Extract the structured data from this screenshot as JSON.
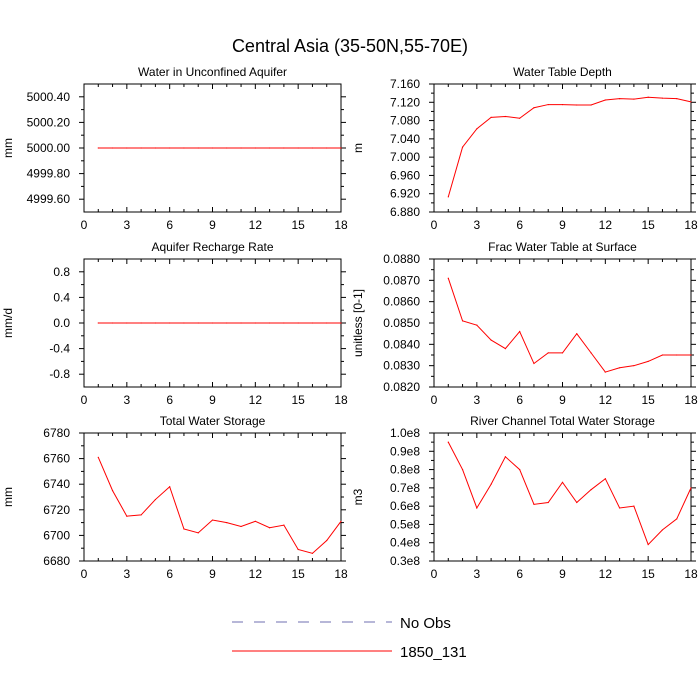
{
  "figure": {
    "title": "Central Asia (35-50N,55-70E)"
  },
  "legend": [
    {
      "label": "No Obs",
      "color": "#6f6fb0",
      "dash": true
    },
    {
      "label": "1850_131",
      "color": "#ff0000",
      "dash": false
    }
  ],
  "chart_data": [
    {
      "type": "line",
      "title": "Water in Unconfined Aquifer",
      "xlabel": "",
      "ylabel": "mm",
      "xlim": [
        0,
        18
      ],
      "ylim": [
        4999.5,
        5000.5
      ],
      "xticks": [
        0,
        3,
        6,
        9,
        12,
        15,
        18
      ],
      "yticks": [
        4999.6,
        4999.8,
        5000.0,
        5000.2,
        5000.4
      ],
      "ytick_labels": [
        "4999.60",
        "4999.80",
        "5000.00",
        "5000.20",
        "5000.40"
      ],
      "series": [
        {
          "name": "1850_131",
          "color": "#ff0000",
          "x": [
            1,
            2,
            3,
            4,
            5,
            6,
            7,
            8,
            9,
            10,
            11,
            12,
            13,
            14,
            15,
            16,
            17,
            18
          ],
          "y": [
            5000,
            5000,
            5000,
            5000,
            5000,
            5000,
            5000,
            5000,
            5000,
            5000,
            5000,
            5000,
            5000,
            5000,
            5000,
            5000,
            5000,
            5000
          ]
        }
      ]
    },
    {
      "type": "line",
      "title": "Water Table Depth",
      "xlabel": "",
      "ylabel": "m",
      "xlim": [
        0,
        18
      ],
      "ylim": [
        6.88,
        7.16
      ],
      "xticks": [
        0,
        3,
        6,
        9,
        12,
        15,
        18
      ],
      "yticks": [
        6.88,
        6.92,
        6.96,
        7.0,
        7.04,
        7.08,
        7.12,
        7.16
      ],
      "ytick_labels": [
        "6.880",
        "6.920",
        "6.960",
        "7.000",
        "7.040",
        "7.080",
        "7.120",
        "7.160"
      ],
      "series": [
        {
          "name": "1850_131",
          "color": "#ff0000",
          "x": [
            1,
            2,
            3,
            4,
            5,
            6,
            7,
            8,
            9,
            10,
            11,
            12,
            13,
            14,
            15,
            16,
            17,
            18
          ],
          "y": [
            6.913,
            7.022,
            7.062,
            7.087,
            7.089,
            7.085,
            7.108,
            7.115,
            7.115,
            7.114,
            7.114,
            7.125,
            7.128,
            7.127,
            7.131,
            7.129,
            7.128,
            7.121
          ]
        }
      ]
    },
    {
      "type": "line",
      "title": "Aquifer Recharge Rate",
      "xlabel": "",
      "ylabel": "mm/d",
      "xlim": [
        0,
        18
      ],
      "ylim": [
        -1.0,
        1.0
      ],
      "xticks": [
        0,
        3,
        6,
        9,
        12,
        15,
        18
      ],
      "yticks": [
        -0.8,
        -0.4,
        0.0,
        0.4,
        0.8
      ],
      "ytick_labels": [
        "-0.8",
        "-0.4",
        "0.0",
        "0.4",
        "0.8"
      ],
      "series": [
        {
          "name": "1850_131",
          "color": "#ff0000",
          "x": [
            1,
            2,
            3,
            4,
            5,
            6,
            7,
            8,
            9,
            10,
            11,
            12,
            13,
            14,
            15,
            16,
            17,
            18
          ],
          "y": [
            0,
            0,
            0,
            0,
            0,
            0,
            0,
            0,
            0,
            0,
            0,
            0,
            0,
            0,
            0,
            0,
            0,
            0
          ]
        }
      ]
    },
    {
      "type": "line",
      "title": "Frac Water Table at Surface",
      "xlabel": "",
      "ylabel": "unitless [0-1]",
      "xlim": [
        0,
        18
      ],
      "ylim": [
        0.082,
        0.088
      ],
      "xticks": [
        0,
        3,
        6,
        9,
        12,
        15,
        18
      ],
      "yticks": [
        0.082,
        0.083,
        0.084,
        0.085,
        0.086,
        0.087,
        0.088
      ],
      "ytick_labels": [
        "0.0820",
        "0.0830",
        "0.0840",
        "0.0850",
        "0.0860",
        "0.0870",
        "0.0880"
      ],
      "series": [
        {
          "name": "1850_131",
          "color": "#ff0000",
          "x": [
            1,
            2,
            3,
            4,
            5,
            6,
            7,
            8,
            9,
            10,
            11,
            12,
            13,
            14,
            15,
            16,
            17,
            18
          ],
          "y": [
            0.0871,
            0.0851,
            0.0849,
            0.0842,
            0.0838,
            0.0846,
            0.0831,
            0.0836,
            0.0836,
            0.0845,
            0.0836,
            0.0827,
            0.0829,
            0.083,
            0.0832,
            0.0835,
            0.0835,
            0.0835
          ]
        }
      ]
    },
    {
      "type": "line",
      "title": "Total Water Storage",
      "xlabel": "",
      "ylabel": "mm",
      "xlim": [
        0,
        18
      ],
      "ylim": [
        6680,
        6780
      ],
      "xticks": [
        0,
        3,
        6,
        9,
        12,
        15,
        18
      ],
      "yticks": [
        6680,
        6700,
        6720,
        6740,
        6760,
        6780
      ],
      "ytick_labels": [
        "6680",
        "6700",
        "6720",
        "6740",
        "6760",
        "6780"
      ],
      "series": [
        {
          "name": "1850_131",
          "color": "#ff0000",
          "x": [
            1,
            2,
            3,
            4,
            5,
            6,
            7,
            8,
            9,
            10,
            11,
            12,
            13,
            14,
            15,
            16,
            17,
            18
          ],
          "y": [
            6761,
            6735,
            6715,
            6716,
            6728,
            6738,
            6705,
            6702,
            6712,
            6710,
            6707,
            6711,
            6706,
            6708,
            6689,
            6686,
            6696,
            6711
          ]
        }
      ]
    },
    {
      "type": "line",
      "title": "River Channel Total Water Storage",
      "xlabel": "",
      "ylabel": "m3",
      "xlim": [
        0,
        18
      ],
      "ylim": [
        30000000.0,
        100000000.0
      ],
      "xticks": [
        0,
        3,
        6,
        9,
        12,
        15,
        18
      ],
      "yticks": [
        30000000.0,
        40000000.0,
        50000000.0,
        60000000.0,
        70000000.0,
        80000000.0,
        90000000.0,
        100000000.0
      ],
      "ytick_labels": [
        "0.3e8",
        "0.4e8",
        "0.5e8",
        "0.6e8",
        "0.7e8",
        "0.8e8",
        "0.9e8",
        "1.0e8"
      ],
      "series": [
        {
          "name": "1850_131",
          "color": "#ff0000",
          "x": [
            1,
            2,
            3,
            4,
            5,
            6,
            7,
            8,
            9,
            10,
            11,
            12,
            13,
            14,
            15,
            16,
            17,
            18
          ],
          "y": [
            95000000.0,
            80000000.0,
            59000000.0,
            72000000.0,
            87000000.0,
            80000000.0,
            61000000.0,
            62000000.0,
            73000000.0,
            62000000.0,
            69000000.0,
            75000000.0,
            59000000.0,
            60000000.0,
            39000000.0,
            47000000.0,
            53000000.0,
            70000000.0
          ]
        }
      ]
    }
  ]
}
